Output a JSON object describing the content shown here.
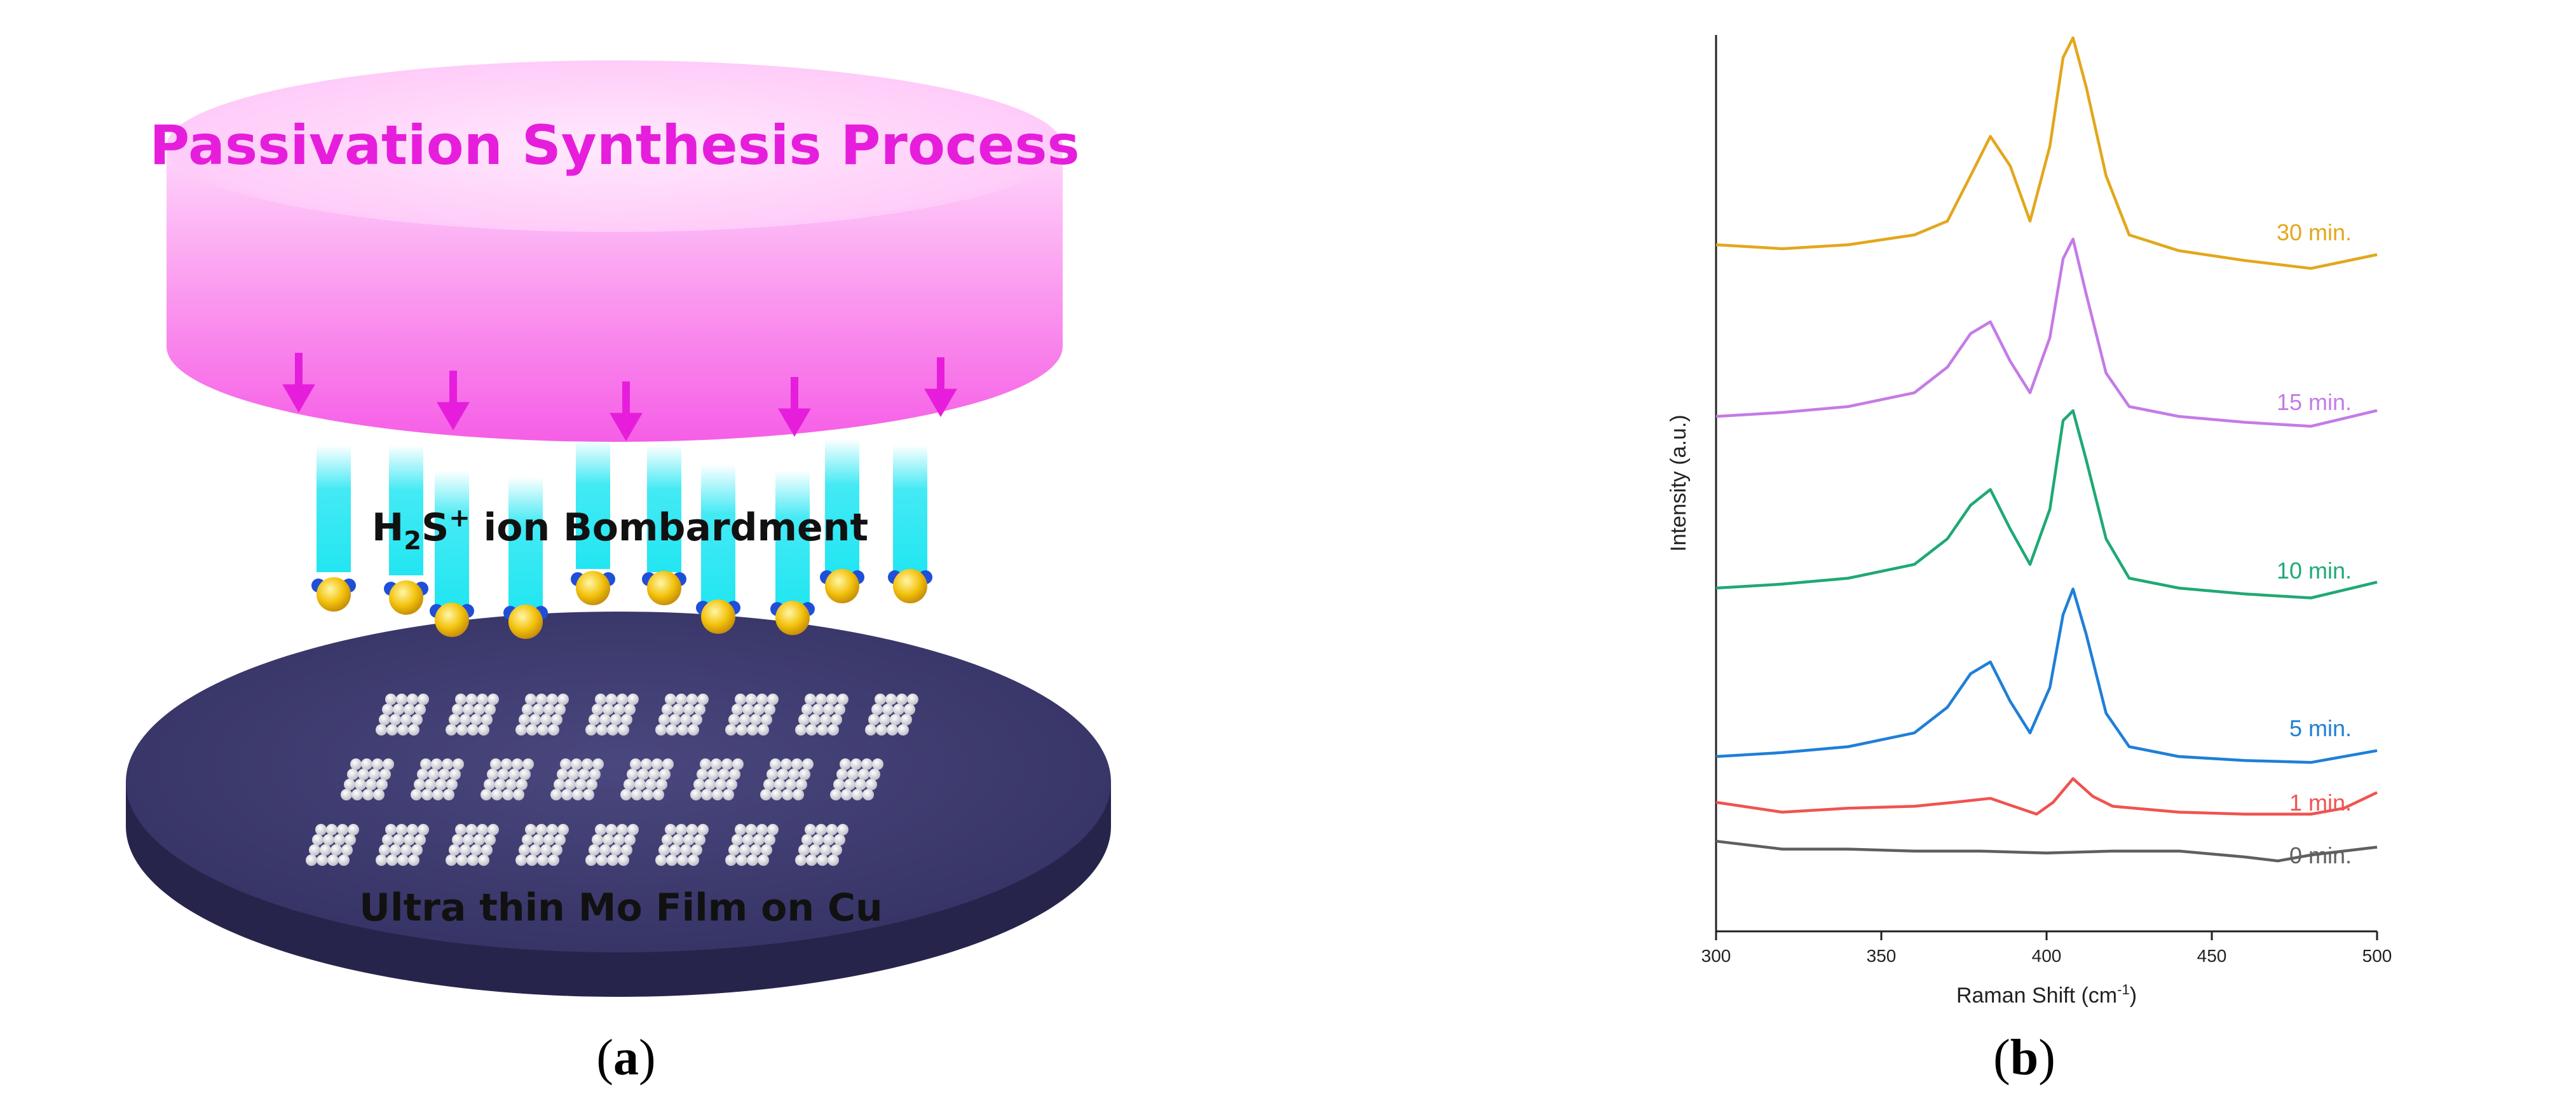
{
  "panel_a": {
    "title": "Passivation Synthesis Process",
    "ion_label": {
      "prefix": "H",
      "sub": "2",
      "mid": "S",
      "sup": "+",
      "suffix": " ion Bombardment"
    },
    "film_label": "Ultra thin Mo Film on Cu",
    "caption": "a"
  },
  "panel_b": {
    "caption": "b"
  },
  "colors": {
    "magenta": "#e61edc",
    "beam": "#22e6f2",
    "disk_top": "#3e3b6e",
    "disk_side": "#27244c",
    "atom_gold": "#f3c20c",
    "atom_blue": "#1f4fd8"
  },
  "chart_data": {
    "type": "line",
    "xlabel_main": "Raman Shift (cm",
    "xlabel_sup": "-1",
    "xlabel_end": ")",
    "ylabel": "Intensity (a.u.)",
    "xlim": [
      300,
      500
    ],
    "xticks": [
      "300",
      "350",
      "400",
      "450",
      "500"
    ],
    "y_ticks_shown": false,
    "legend": "inline labels at right end of each trace",
    "series": [
      {
        "name": "0 min.",
        "color": "#5f5f5f",
        "offset": 0.0,
        "x": [
          300,
          320,
          340,
          360,
          380,
          400,
          420,
          440,
          460,
          470,
          480,
          500
        ],
        "y": [
          0.08,
          0.04,
          0.04,
          0.03,
          0.03,
          0.02,
          0.03,
          0.03,
          0.0,
          -0.02,
          0.01,
          0.05
        ]
      },
      {
        "name": "1 min.",
        "color": "#ef5350",
        "offset": 0.0,
        "x": [
          300,
          320,
          340,
          360,
          372,
          383,
          390,
          397,
          402,
          408,
          414,
          420,
          440,
          460,
          480,
          490,
          500
        ],
        "y": [
          0.0,
          -0.05,
          -0.03,
          -0.02,
          0.0,
          0.02,
          -0.02,
          -0.06,
          0.0,
          0.12,
          0.03,
          -0.02,
          -0.05,
          -0.06,
          -0.06,
          -0.03,
          0.05
        ]
      },
      {
        "name": "5 min.",
        "color": "#1e7fd8",
        "offset": 0.0,
        "x": [
          300,
          320,
          340,
          360,
          370,
          377,
          383,
          389,
          395,
          401,
          405,
          408,
          412,
          418,
          425,
          440,
          460,
          480,
          500
        ],
        "y": [
          0.0,
          0.02,
          0.05,
          0.12,
          0.25,
          0.42,
          0.48,
          0.28,
          0.12,
          0.35,
          0.72,
          0.85,
          0.62,
          0.22,
          0.05,
          0.0,
          -0.02,
          -0.03,
          0.03
        ]
      },
      {
        "name": "10 min.",
        "color": "#1fa974",
        "offset": 0.0,
        "x": [
          300,
          320,
          340,
          360,
          370,
          377,
          383,
          389,
          395,
          401,
          405,
          408,
          412,
          418,
          425,
          440,
          460,
          480,
          500
        ],
        "y": [
          0.0,
          0.02,
          0.05,
          0.12,
          0.25,
          0.42,
          0.5,
          0.3,
          0.12,
          0.4,
          0.85,
          0.9,
          0.65,
          0.25,
          0.05,
          0.0,
          -0.03,
          -0.05,
          0.03
        ]
      },
      {
        "name": "15 min.",
        "color": "#c47be6",
        "offset": 0.0,
        "x": [
          300,
          320,
          340,
          360,
          370,
          377,
          383,
          389,
          395,
          401,
          405,
          408,
          412,
          418,
          425,
          440,
          460,
          480,
          500
        ],
        "y": [
          0.0,
          0.02,
          0.05,
          0.12,
          0.25,
          0.42,
          0.48,
          0.28,
          0.12,
          0.4,
          0.8,
          0.9,
          0.62,
          0.22,
          0.05,
          0.0,
          -0.03,
          -0.05,
          0.03
        ]
      },
      {
        "name": "30 min.",
        "color": "#e2a71c",
        "offset": 0.0,
        "x": [
          300,
          320,
          340,
          360,
          370,
          377,
          383,
          389,
          395,
          401,
          405,
          408,
          412,
          418,
          425,
          440,
          460,
          480,
          500
        ],
        "y": [
          0.0,
          -0.02,
          0.0,
          0.05,
          0.12,
          0.35,
          0.55,
          0.4,
          0.12,
          0.5,
          0.95,
          1.05,
          0.8,
          0.35,
          0.05,
          -0.03,
          -0.08,
          -0.12,
          -0.05
        ]
      }
    ]
  }
}
